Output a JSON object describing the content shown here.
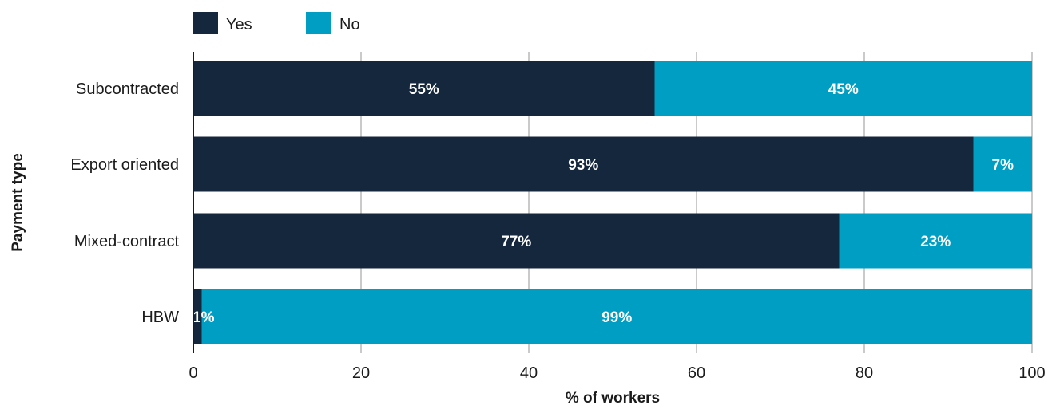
{
  "chart_data": {
    "type": "bar",
    "orientation": "horizontal",
    "stacked": true,
    "categories": [
      "Subcontracted",
      "Export oriented",
      "Mixed-contract",
      "HBW"
    ],
    "series": [
      {
        "name": "Yes",
        "color": "#14273d",
        "values": [
          55,
          93,
          77,
          1
        ],
        "labels": [
          "55%",
          "93%",
          "77%",
          "1%"
        ]
      },
      {
        "name": "No",
        "color": "#009ec3",
        "values": [
          45,
          7,
          23,
          99
        ],
        "labels": [
          "45%",
          "7%",
          "23%",
          "99%"
        ]
      }
    ],
    "xlabel": "% of workers",
    "ylabel": "Payment type",
    "xlim": [
      0,
      100
    ],
    "xticks": [
      "0",
      "20",
      "40",
      "60",
      "80",
      "100"
    ],
    "grid": "vertical",
    "legend": "top-left"
  }
}
